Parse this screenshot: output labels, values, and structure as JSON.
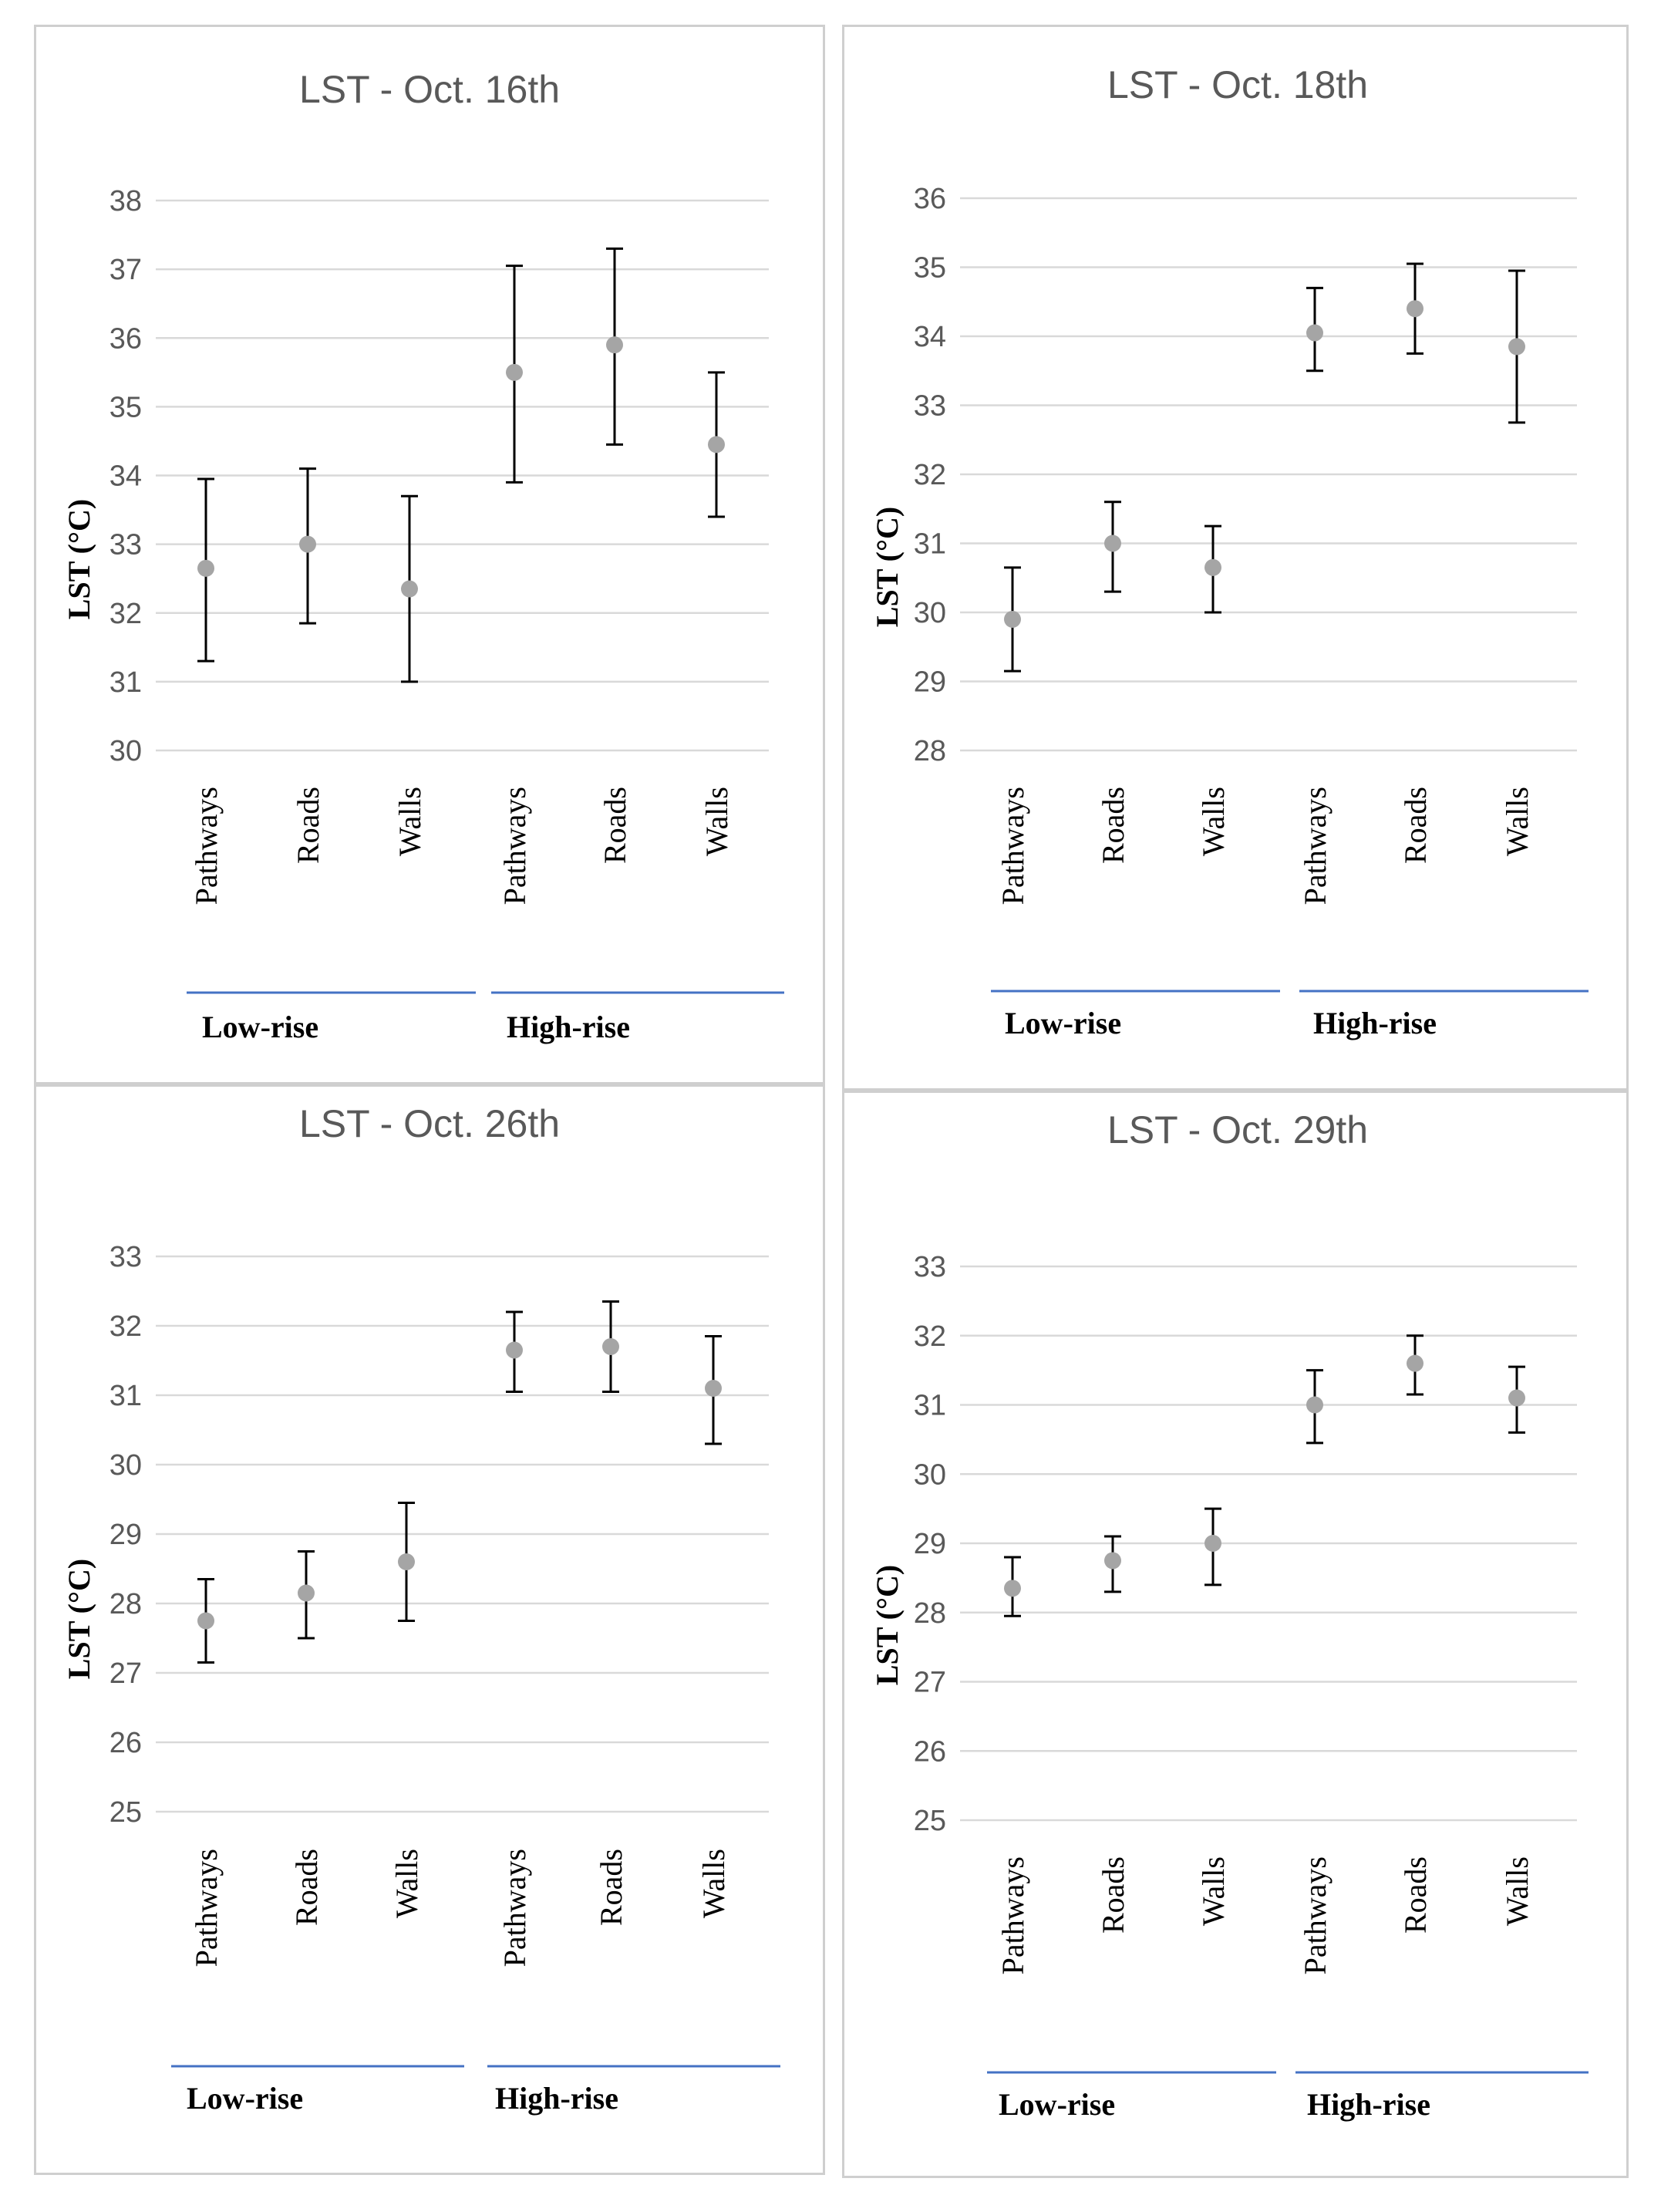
{
  "chart_data": [
    {
      "type": "scatter",
      "title": "LST - Oct. 16th",
      "ylabel": "LST (°C)",
      "ylim": [
        30,
        38
      ],
      "yticks": [
        "30",
        "31",
        "32",
        "33",
        "34",
        "35",
        "36",
        "37",
        "38"
      ],
      "categories": [
        "Pathways",
        "Roads",
        "Walls",
        "Pathways",
        "Roads",
        "Walls"
      ],
      "groups": [
        "Low-rise",
        "High-rise"
      ],
      "values": [
        32.65,
        33.0,
        32.35,
        35.5,
        35.9,
        34.45
      ],
      "lower": [
        31.3,
        31.85,
        31.0,
        33.9,
        34.45,
        33.4
      ],
      "upper": [
        33.95,
        34.1,
        33.7,
        37.05,
        37.3,
        35.5
      ]
    },
    {
      "type": "scatter",
      "title": "LST - Oct. 18th",
      "ylabel": "LST (°C)",
      "ylim": [
        28,
        36
      ],
      "yticks": [
        "28",
        "29",
        "30",
        "31",
        "32",
        "33",
        "34",
        "35",
        "36"
      ],
      "categories": [
        "Pathways",
        "Roads",
        "Walls",
        "Pathways",
        "Roads",
        "Walls"
      ],
      "groups": [
        "Low-rise",
        "High-rise"
      ],
      "values": [
        29.9,
        31.0,
        30.65,
        34.05,
        34.4,
        33.85
      ],
      "lower": [
        29.15,
        30.3,
        30.0,
        33.5,
        33.75,
        32.75
      ],
      "upper": [
        30.65,
        31.6,
        31.25,
        34.7,
        35.05,
        34.95
      ]
    },
    {
      "type": "scatter",
      "title": "LST - Oct. 26th",
      "ylabel": "LST (°C)",
      "ylim": [
        25,
        33
      ],
      "yticks": [
        "25",
        "26",
        "27",
        "28",
        "29",
        "30",
        "31",
        "32",
        "33"
      ],
      "categories": [
        "Pathways",
        "Roads",
        "Walls",
        "Pathways",
        "Roads",
        "Walls"
      ],
      "groups": [
        "Low-rise",
        "High-rise"
      ],
      "values": [
        27.75,
        28.15,
        28.6,
        31.65,
        31.7,
        31.1
      ],
      "lower": [
        27.15,
        27.5,
        27.75,
        31.05,
        31.05,
        30.3
      ],
      "upper": [
        28.35,
        28.75,
        29.45,
        32.2,
        32.35,
        31.85
      ]
    },
    {
      "type": "scatter",
      "title": "LST - Oct. 29th",
      "ylabel": "LST (°C)",
      "ylim": [
        25,
        33
      ],
      "yticks": [
        "25",
        "26",
        "27",
        "28",
        "29",
        "30",
        "31",
        "32",
        "33"
      ],
      "categories": [
        "Pathways",
        "Roads",
        "Walls",
        "Pathways",
        "Roads",
        "Walls"
      ],
      "groups": [
        "Low-rise",
        "High-rise"
      ],
      "values": [
        28.35,
        28.75,
        29.0,
        31.0,
        31.6,
        31.1
      ],
      "lower": [
        27.95,
        28.3,
        28.4,
        30.45,
        31.15,
        30.6
      ],
      "upper": [
        28.8,
        29.1,
        29.5,
        31.5,
        32.0,
        31.55
      ]
    }
  ]
}
